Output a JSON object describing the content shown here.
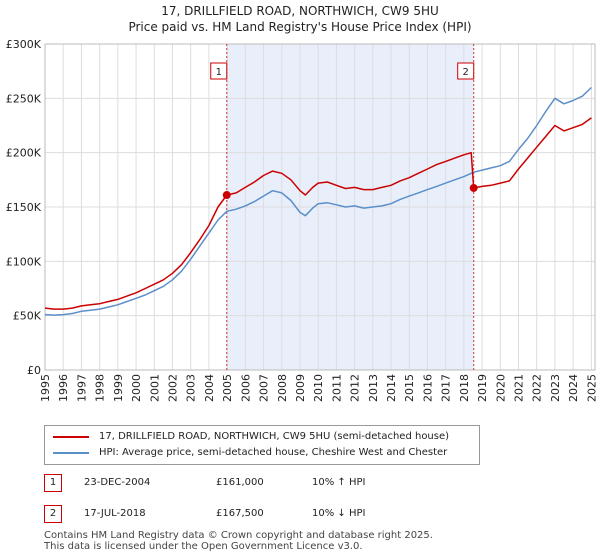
{
  "chart_data": {
    "type": "line",
    "title": "17, DRILLFIELD ROAD, NORTHWICH, CW9 5HU",
    "subtitle": "Price paid vs. HM Land Registry's House Price Index (HPI)",
    "xlim": [
      1995,
      2025.2
    ],
    "ylim": [
      0,
      300000
    ],
    "x_ticks": [
      "1995",
      "1996",
      "1997",
      "1998",
      "1999",
      "2000",
      "2001",
      "2002",
      "2003",
      "2004",
      "2005",
      "2006",
      "2007",
      "2008",
      "2009",
      "2010",
      "2011",
      "2012",
      "2013",
      "2014",
      "2015",
      "2016",
      "2017",
      "2018",
      "2019",
      "2020",
      "2021",
      "2022",
      "2023",
      "2024",
      "2025"
    ],
    "y_ticks": [
      {
        "value": 0,
        "label": "£0"
      },
      {
        "value": 50000,
        "label": "£50K"
      },
      {
        "value": 100000,
        "label": "£100K"
      },
      {
        "value": 150000,
        "label": "£150K"
      },
      {
        "value": 200000,
        "label": "£200K"
      },
      {
        "value": 250000,
        "label": "£250K"
      },
      {
        "value": 300000,
        "label": "£300K"
      }
    ],
    "shaded_range": [
      2004.98,
      2018.54
    ],
    "series": [
      {
        "name": "17, DRILLFIELD ROAD, NORTHWICH, CW9 5HU (semi-detached house)",
        "color": "#cc0000",
        "points": [
          [
            1995.0,
            57000
          ],
          [
            1995.5,
            56000
          ],
          [
            1996.0,
            56000
          ],
          [
            1996.5,
            57000
          ],
          [
            1997.0,
            59000
          ],
          [
            1997.5,
            60000
          ],
          [
            1998.0,
            61000
          ],
          [
            1998.5,
            63000
          ],
          [
            1999.0,
            65000
          ],
          [
            1999.5,
            68000
          ],
          [
            2000.0,
            71000
          ],
          [
            2000.5,
            75000
          ],
          [
            2001.0,
            79000
          ],
          [
            2001.5,
            83000
          ],
          [
            2002.0,
            89000
          ],
          [
            2002.5,
            97000
          ],
          [
            2003.0,
            108000
          ],
          [
            2003.5,
            120000
          ],
          [
            2004.0,
            133000
          ],
          [
            2004.5,
            150000
          ],
          [
            2004.98,
            161000
          ],
          [
            2005.5,
            163000
          ],
          [
            2006.0,
            168000
          ],
          [
            2006.5,
            173000
          ],
          [
            2007.0,
            179000
          ],
          [
            2007.5,
            183000
          ],
          [
            2008.0,
            181000
          ],
          [
            2008.5,
            175000
          ],
          [
            2009.0,
            165000
          ],
          [
            2009.3,
            161000
          ],
          [
            2009.7,
            168000
          ],
          [
            2010.0,
            172000
          ],
          [
            2010.5,
            173000
          ],
          [
            2011.0,
            170000
          ],
          [
            2011.5,
            167000
          ],
          [
            2012.0,
            168000
          ],
          [
            2012.5,
            166000
          ],
          [
            2013.0,
            166000
          ],
          [
            2013.5,
            168000
          ],
          [
            2014.0,
            170000
          ],
          [
            2014.5,
            174000
          ],
          [
            2015.0,
            177000
          ],
          [
            2015.5,
            181000
          ],
          [
            2016.0,
            185000
          ],
          [
            2016.5,
            189000
          ],
          [
            2017.0,
            192000
          ],
          [
            2017.5,
            195000
          ],
          [
            2018.0,
            198000
          ],
          [
            2018.4,
            200000
          ],
          [
            2018.54,
            167500
          ],
          [
            2019.0,
            169000
          ],
          [
            2019.5,
            170000
          ],
          [
            2020.0,
            172000
          ],
          [
            2020.5,
            174000
          ],
          [
            2021.0,
            185000
          ],
          [
            2021.5,
            195000
          ],
          [
            2022.0,
            205000
          ],
          [
            2022.5,
            215000
          ],
          [
            2023.0,
            225000
          ],
          [
            2023.5,
            220000
          ],
          [
            2024.0,
            223000
          ],
          [
            2024.5,
            226000
          ],
          [
            2025.0,
            232000
          ]
        ]
      },
      {
        "name": "HPI: Average price, semi-detached house, Cheshire West and Chester",
        "color": "#5b8fc9",
        "points": [
          [
            1995.0,
            51000
          ],
          [
            1995.5,
            50500
          ],
          [
            1996.0,
            51000
          ],
          [
            1996.5,
            52000
          ],
          [
            1997.0,
            54000
          ],
          [
            1997.5,
            55000
          ],
          [
            1998.0,
            56000
          ],
          [
            1998.5,
            58000
          ],
          [
            1999.0,
            60000
          ],
          [
            1999.5,
            63000
          ],
          [
            2000.0,
            66000
          ],
          [
            2000.5,
            69000
          ],
          [
            2001.0,
            73000
          ],
          [
            2001.5,
            77000
          ],
          [
            2002.0,
            83000
          ],
          [
            2002.5,
            91000
          ],
          [
            2003.0,
            102000
          ],
          [
            2003.5,
            114000
          ],
          [
            2004.0,
            126000
          ],
          [
            2004.5,
            138000
          ],
          [
            2004.98,
            146000
          ],
          [
            2005.5,
            148000
          ],
          [
            2006.0,
            151000
          ],
          [
            2006.5,
            155000
          ],
          [
            2007.0,
            160000
          ],
          [
            2007.5,
            165000
          ],
          [
            2008.0,
            163000
          ],
          [
            2008.5,
            156000
          ],
          [
            2009.0,
            145000
          ],
          [
            2009.3,
            142000
          ],
          [
            2009.7,
            149000
          ],
          [
            2010.0,
            153000
          ],
          [
            2010.5,
            154000
          ],
          [
            2011.0,
            152000
          ],
          [
            2011.5,
            150000
          ],
          [
            2012.0,
            151000
          ],
          [
            2012.5,
            149000
          ],
          [
            2013.0,
            150000
          ],
          [
            2013.5,
            151000
          ],
          [
            2014.0,
            153000
          ],
          [
            2014.5,
            157000
          ],
          [
            2015.0,
            160000
          ],
          [
            2015.5,
            163000
          ],
          [
            2016.0,
            166000
          ],
          [
            2016.5,
            169000
          ],
          [
            2017.0,
            172000
          ],
          [
            2017.5,
            175000
          ],
          [
            2018.0,
            178000
          ],
          [
            2018.54,
            182000
          ],
          [
            2019.0,
            184000
          ],
          [
            2019.5,
            186000
          ],
          [
            2020.0,
            188000
          ],
          [
            2020.5,
            192000
          ],
          [
            2021.0,
            203000
          ],
          [
            2021.5,
            213000
          ],
          [
            2022.0,
            225000
          ],
          [
            2022.5,
            238000
          ],
          [
            2023.0,
            250000
          ],
          [
            2023.5,
            245000
          ],
          [
            2024.0,
            248000
          ],
          [
            2024.5,
            252000
          ],
          [
            2025.0,
            260000
          ]
        ]
      }
    ],
    "sales": [
      {
        "label": "1",
        "x": 2004.98,
        "y": 161000
      },
      {
        "label": "2",
        "x": 2018.54,
        "y": 167500
      }
    ]
  },
  "legend": {
    "property_label": "17, DRILLFIELD ROAD, NORTHWICH, CW9 5HU (semi-detached house)",
    "hpi_label": "HPI: Average price, semi-detached house, Cheshire West and Chester"
  },
  "transactions": [
    {
      "label": "1",
      "date": "23-DEC-2004",
      "price": "£161,000",
      "hpi": "10% ↑ HPI"
    },
    {
      "label": "2",
      "date": "17-JUL-2018",
      "price": "£167,500",
      "hpi": "10% ↓ HPI"
    }
  ],
  "footer": {
    "line1": "Contains HM Land Registry data © Crown copyright and database right 2025.",
    "line2": "This data is licensed under the Open Government Licence v3.0."
  }
}
